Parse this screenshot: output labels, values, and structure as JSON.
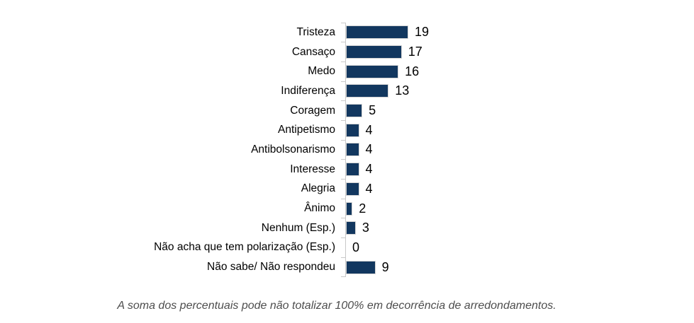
{
  "chart_data": {
    "type": "bar",
    "orientation": "horizontal",
    "title": "",
    "xlabel": "",
    "ylabel": "",
    "xlim": [
      0,
      20
    ],
    "grid": false,
    "legend": false,
    "value_labels_shown": true,
    "bar_color": "#12375f",
    "axis_color": "#c9c9c9",
    "categories": [
      "Tristeza",
      "Cansaço",
      "Medo",
      "Indiferença",
      "Coragem",
      "Antipetismo",
      "Antibolsonarismo",
      "Interesse",
      "Alegria",
      "Ânimo",
      "Nenhum (Esp.)",
      "Não acha que tem polarização (Esp.)",
      "Não sabe/ Não respondeu"
    ],
    "values": [
      19,
      17,
      16,
      13,
      5,
      4,
      4,
      4,
      4,
      2,
      3,
      0,
      9
    ]
  },
  "footer": {
    "note": "A soma dos percentuais pode não totalizar 100% em decorrência de arredondamentos."
  }
}
